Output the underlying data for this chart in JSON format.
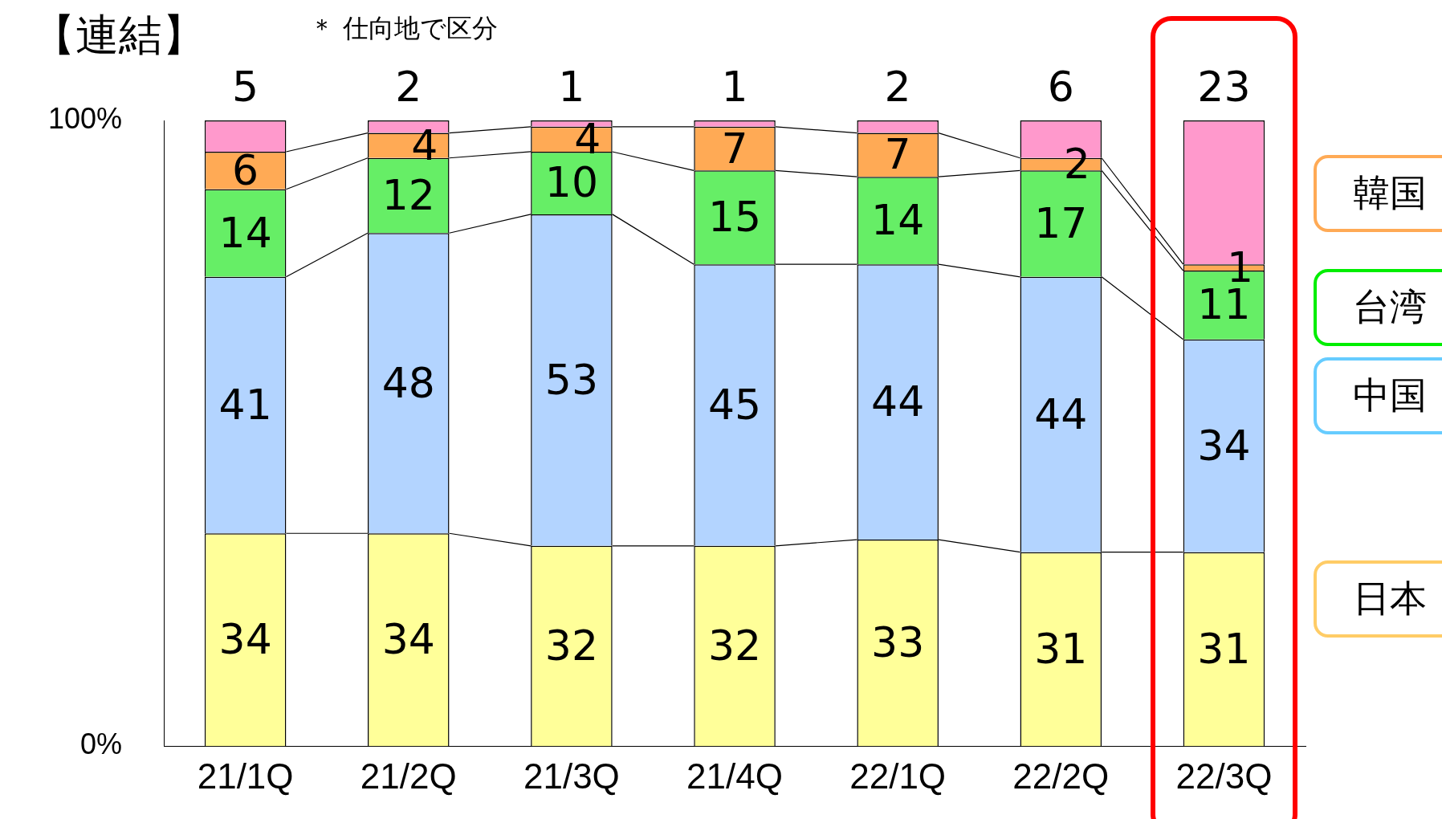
{
  "chart_data": {
    "type": "bar",
    "title": "【連結】",
    "subtitle": "＊ 仕向地で区分",
    "stacked": true,
    "categories": [
      "21/1Q",
      "21/2Q",
      "21/3Q",
      "21/4Q",
      "22/1Q",
      "22/2Q",
      "22/3Q"
    ],
    "series": [
      {
        "name": "日本",
        "color": "#ffff99",
        "values": [
          34,
          34,
          32,
          32,
          33,
          31,
          31
        ]
      },
      {
        "name": "中国",
        "color": "#b3d4ff",
        "values": [
          41,
          48,
          53,
          45,
          44,
          44,
          34
        ]
      },
      {
        "name": "台湾",
        "color": "#66ee66",
        "values": [
          14,
          12,
          10,
          15,
          14,
          17,
          11
        ]
      },
      {
        "name": "韓国",
        "color": "#ffaa55",
        "values": [
          6,
          4,
          4,
          7,
          7,
          2,
          1
        ]
      },
      {
        "color": "#ff99cc",
        "values": [
          5,
          2,
          1,
          1,
          2,
          6,
          23
        ]
      }
    ],
    "ylim": [
      0,
      100
    ],
    "yticks": [
      {
        "value": 0,
        "label": "0%"
      },
      {
        "value": 100,
        "label": "100%"
      }
    ],
    "grid": false,
    "legend": "right",
    "data_labels": true
  }
}
